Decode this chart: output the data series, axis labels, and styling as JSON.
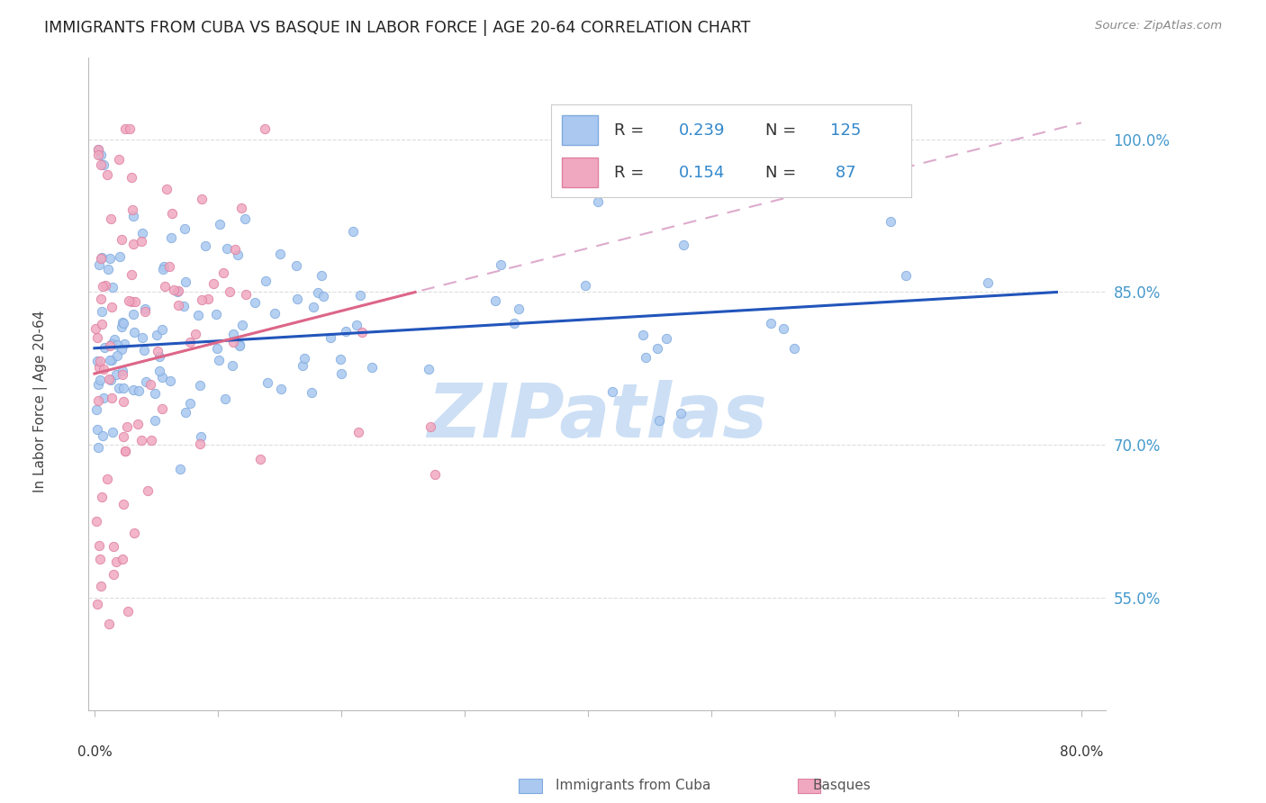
{
  "title": "IMMIGRANTS FROM CUBA VS BASQUE IN LABOR FORCE | AGE 20-64 CORRELATION CHART",
  "source": "Source: ZipAtlas.com",
  "ylabel": "In Labor Force | Age 20-64",
  "ytick_labels": [
    "55.0%",
    "70.0%",
    "85.0%",
    "100.0%"
  ],
  "ytick_values": [
    0.55,
    0.7,
    0.85,
    1.0
  ],
  "xlim": [
    -0.005,
    0.82
  ],
  "ylim": [
    0.44,
    1.08
  ],
  "cuba_color": "#aac8f0",
  "cuba_edge_color": "#80aade",
  "basque_color": "#f0a8c0",
  "basque_edge_color": "#de80a0",
  "cuba_line_color": "#2255bb",
  "basque_line_color": "#dd6688",
  "basque_dash_color": "#ddaacc",
  "watermark_color": "#ccdff5",
  "legend_text_color": "#333333",
  "legend_num_color": "#3388cc",
  "axis_color": "#bbbbbb",
  "ytick_color": "#4499cc",
  "grid_color": "#dddddd",
  "title_color": "#222222",
  "source_color": "#888888",
  "xlabel_color": "#333333",
  "bottom_legend_color": "#555555"
}
